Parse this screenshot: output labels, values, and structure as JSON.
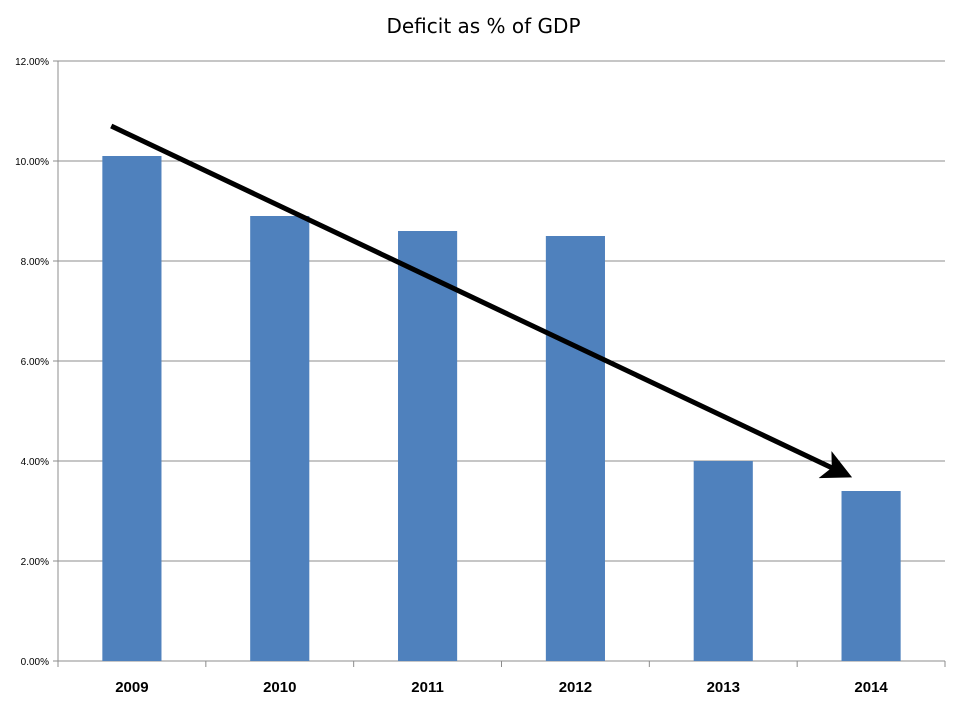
{
  "chart_data": {
    "type": "bar",
    "title": "Deficit as % of GDP",
    "xlabel": "",
    "ylabel": "",
    "categories": [
      "2009",
      "2010",
      "2011",
      "2012",
      "2013",
      "2014"
    ],
    "values": [
      10.1,
      8.9,
      8.6,
      8.5,
      4.0,
      3.4
    ],
    "ylim": [
      0,
      12
    ],
    "y_ticks": [
      0,
      2,
      4,
      6,
      8,
      10,
      12
    ],
    "y_tick_labels": [
      "0.00%",
      "2.00%",
      "4.00%",
      "6.00%",
      "8.00%",
      "10.00%",
      "12.00%"
    ],
    "grid": true,
    "legend": "none",
    "bar_color": "#4F81BD",
    "annotation": {
      "type": "trend-arrow",
      "from": {
        "x": "2009",
        "y": 10.7
      },
      "to": {
        "x": "2014",
        "y": 3.8
      },
      "color": "#000000"
    }
  }
}
